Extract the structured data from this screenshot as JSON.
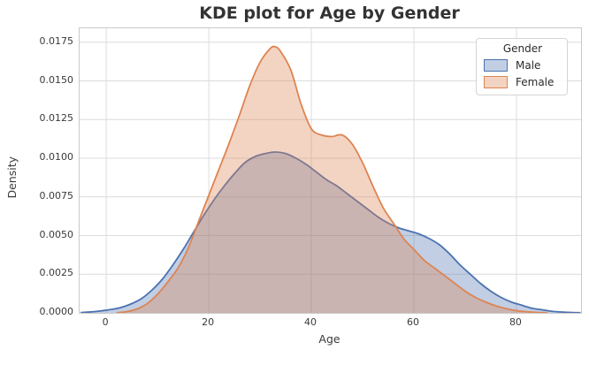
{
  "figure": {
    "title": "KDE plot for Age by Gender",
    "xlabel": "Age",
    "ylabel": "Density"
  },
  "legend": {
    "title": "Gender",
    "entries": [
      {
        "label": "Male",
        "color": "#4c72b0"
      },
      {
        "label": "Female",
        "color": "#dd8452"
      }
    ]
  },
  "styles": {
    "background": "#ffffff",
    "grid_color": "#dcdcdc",
    "spine_color": "#c9c9c9",
    "text_color": "#3a3a3a",
    "title_color": "#333333",
    "fill_alpha": 0.35,
    "line_width": 1.8
  },
  "chart_data": {
    "type": "area",
    "subtype": "kde",
    "title": "KDE plot for Age by Gender",
    "xlabel": "Age",
    "ylabel": "Density",
    "grid": true,
    "legend_position": "upper right",
    "legend_title": "Gender",
    "xlim": [
      -5.2,
      92.6
    ],
    "ylim": [
      0,
      0.0184
    ],
    "x_ticks": [
      0,
      20,
      40,
      60,
      80
    ],
    "x_tick_labels": [
      "0",
      "20",
      "40",
      "60",
      "80"
    ],
    "y_ticks": [
      0,
      0.0025,
      0.005,
      0.0075,
      0.01,
      0.0125,
      0.015,
      0.0175
    ],
    "y_tick_labels": [
      "0.0000",
      "0.0025",
      "0.0050",
      "0.0075",
      "0.0100",
      "0.0125",
      "0.0150",
      "0.0175"
    ],
    "series": [
      {
        "name": "Male",
        "color": "#4c72b0",
        "peak": {
          "age": 33,
          "density": 0.0104
        },
        "points": [
          [
            -5,
            2e-05
          ],
          [
            -3,
            6e-05
          ],
          [
            -1,
            0.00013
          ],
          [
            1,
            0.00022
          ],
          [
            3,
            0.00036
          ],
          [
            5,
            0.0006
          ],
          [
            7,
            0.00095
          ],
          [
            9,
            0.0015
          ],
          [
            11,
            0.0022
          ],
          [
            13,
            0.0031
          ],
          [
            15,
            0.0041
          ],
          [
            17,
            0.0052
          ],
          [
            19,
            0.0063
          ],
          [
            21,
            0.0073
          ],
          [
            23,
            0.0082
          ],
          [
            25,
            0.009
          ],
          [
            27,
            0.0097
          ],
          [
            29,
            0.0101
          ],
          [
            31,
            0.0103
          ],
          [
            33,
            0.0104
          ],
          [
            35,
            0.0103
          ],
          [
            37,
            0.01
          ],
          [
            39,
            0.0096
          ],
          [
            41,
            0.0091
          ],
          [
            43,
            0.0086
          ],
          [
            45,
            0.0082
          ],
          [
            47,
            0.0077
          ],
          [
            49,
            0.0072
          ],
          [
            51,
            0.0067
          ],
          [
            53,
            0.0062
          ],
          [
            55,
            0.0058
          ],
          [
            57,
            0.0055
          ],
          [
            59,
            0.0053
          ],
          [
            61,
            0.0051
          ],
          [
            63,
            0.0048
          ],
          [
            65,
            0.0044
          ],
          [
            67,
            0.0038
          ],
          [
            69,
            0.0031
          ],
          [
            71,
            0.0025
          ],
          [
            73,
            0.0019
          ],
          [
            75,
            0.0014
          ],
          [
            77,
            0.001
          ],
          [
            79,
            0.0007
          ],
          [
            81,
            0.0005
          ],
          [
            83,
            0.0003
          ],
          [
            85,
            0.0002
          ],
          [
            87,
            0.0001
          ],
          [
            89,
            5e-05
          ],
          [
            91,
            2e-05
          ],
          [
            92.5,
            1e-05
          ]
        ]
      },
      {
        "name": "Female",
        "color": "#dd8452",
        "peak": {
          "age": 32.5,
          "density": 0.0172
        },
        "points": [
          [
            2,
            1e-05
          ],
          [
            4,
            8e-05
          ],
          [
            6,
            0.00025
          ],
          [
            8,
            0.0006
          ],
          [
            10,
            0.0012
          ],
          [
            12,
            0.002
          ],
          [
            14,
            0.0029
          ],
          [
            16,
            0.0042
          ],
          [
            18,
            0.0059
          ],
          [
            20,
            0.0076
          ],
          [
            22,
            0.0093
          ],
          [
            24,
            0.011
          ],
          [
            26,
            0.0128
          ],
          [
            28,
            0.0147
          ],
          [
            30,
            0.0162
          ],
          [
            32,
            0.0171
          ],
          [
            33,
            0.0172
          ],
          [
            34,
            0.0169
          ],
          [
            36,
            0.0157
          ],
          [
            38,
            0.0135
          ],
          [
            40,
            0.0119
          ],
          [
            42,
            0.0115
          ],
          [
            44,
            0.0114
          ],
          [
            46,
            0.0115
          ],
          [
            48,
            0.0109
          ],
          [
            50,
            0.0097
          ],
          [
            52,
            0.0082
          ],
          [
            54,
            0.0068
          ],
          [
            56,
            0.0058
          ],
          [
            58,
            0.0048
          ],
          [
            60,
            0.0041
          ],
          [
            62,
            0.0034
          ],
          [
            64,
            0.0029
          ],
          [
            66,
            0.0024
          ],
          [
            68,
            0.0019
          ],
          [
            70,
            0.0014
          ],
          [
            72,
            0.001
          ],
          [
            74,
            0.0007
          ],
          [
            76,
            0.00045
          ],
          [
            78,
            0.00027
          ],
          [
            80,
            0.00014
          ],
          [
            82,
            7e-05
          ],
          [
            84,
            3e-05
          ],
          [
            86,
            1e-05
          ]
        ]
      }
    ]
  }
}
